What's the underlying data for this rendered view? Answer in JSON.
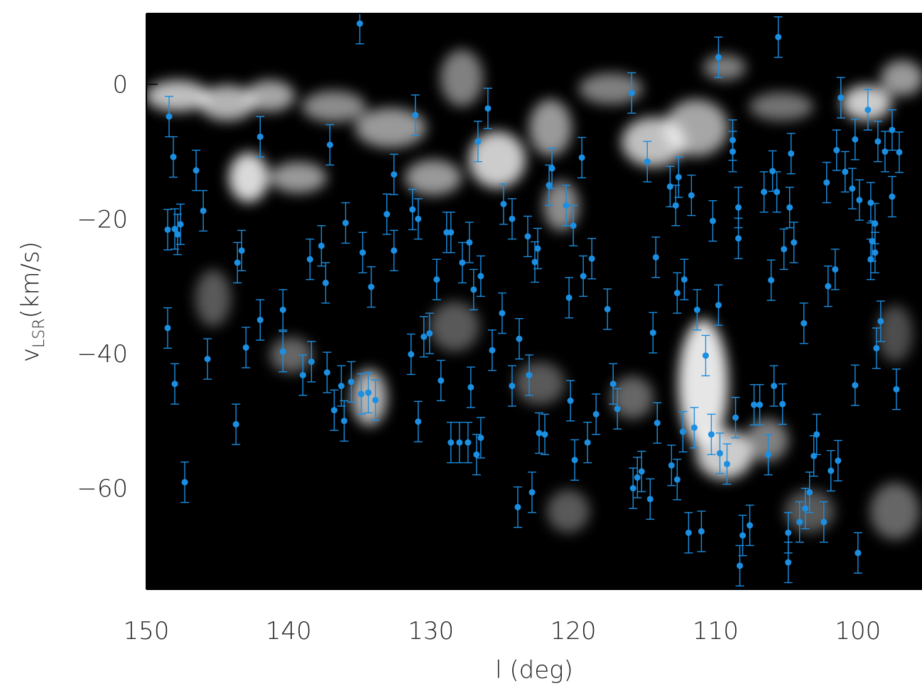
{
  "chart_data": {
    "type": "scatter",
    "title": "",
    "xlabel": "l (deg)",
    "ylabel": {
      "main": "v",
      "sub": "LSR",
      "unit": "(km/s)"
    },
    "xlim": [
      150,
      95.5
    ],
    "ylim": [
      -75,
      10.5
    ],
    "x_ticks": [
      150,
      140,
      130,
      120,
      110,
      100
    ],
    "y_ticks": [
      0,
      -20,
      -40,
      -60
    ],
    "x_tick_labels": [
      "150",
      "140",
      "130",
      "120",
      "110",
      "100"
    ],
    "y_tick_labels": [
      "0",
      "−20",
      "−40",
      "−60"
    ],
    "background": "grayscale position-velocity map (white = strong emission, black = none)",
    "point_color": "#1a8fe3",
    "errorbar_halfwidth_kms": 3,
    "points": [
      [
        135.0,
        9.0
      ],
      [
        105.6,
        7.0
      ],
      [
        109.8,
        4.0
      ],
      [
        115.9,
        -1.3
      ],
      [
        101.2,
        -2.0
      ],
      [
        148.4,
        -4.8
      ],
      [
        131.1,
        -4.6
      ],
      [
        126.0,
        -3.6
      ],
      [
        99.3,
        -3.8
      ],
      [
        148.1,
        -10.8
      ],
      [
        146.5,
        -12.8
      ],
      [
        142.0,
        -7.8
      ],
      [
        137.1,
        -9.0
      ],
      [
        126.7,
        -8.5
      ],
      [
        119.4,
        -10.9
      ],
      [
        114.8,
        -11.5
      ],
      [
        108.8,
        -10.0
      ],
      [
        108.8,
        -8.3
      ],
      [
        104.7,
        -10.3
      ],
      [
        101.5,
        -9.8
      ],
      [
        100.2,
        -8.2
      ],
      [
        98.6,
        -8.5
      ],
      [
        98.1,
        -10.0
      ],
      [
        97.6,
        -6.8
      ],
      [
        97.1,
        -10.1
      ],
      [
        146.0,
        -18.8
      ],
      [
        148.5,
        -21.6
      ],
      [
        148.0,
        -21.5
      ],
      [
        147.6,
        -20.8
      ],
      [
        147.8,
        -22.3
      ],
      [
        136.0,
        -20.6
      ],
      [
        133.1,
        -19.3
      ],
      [
        132.6,
        -13.4
      ],
      [
        131.3,
        -18.6
      ],
      [
        130.9,
        -20.0
      ],
      [
        124.9,
        -17.8
      ],
      [
        124.3,
        -20.0
      ],
      [
        121.5,
        -12.5
      ],
      [
        121.7,
        -15.0
      ],
      [
        120.5,
        -18.0
      ],
      [
        120.0,
        -21.0
      ],
      [
        113.2,
        -15.2
      ],
      [
        112.8,
        -18.0
      ],
      [
        112.6,
        -13.8
      ],
      [
        111.7,
        -16.5
      ],
      [
        110.2,
        -20.3
      ],
      [
        108.4,
        -18.3
      ],
      [
        106.6,
        -16.0
      ],
      [
        106.0,
        -12.9
      ],
      [
        105.7,
        -16.0
      ],
      [
        104.8,
        -18.3
      ],
      [
        102.2,
        -14.6
      ],
      [
        100.9,
        -13.0
      ],
      [
        100.4,
        -15.5
      ],
      [
        99.9,
        -17.2
      ],
      [
        99.1,
        -17.6
      ],
      [
        98.8,
        -20.7
      ],
      [
        97.6,
        -16.7
      ],
      [
        148.5,
        -36.2
      ],
      [
        143.6,
        -26.5
      ],
      [
        143.3,
        -24.7
      ],
      [
        142.0,
        -35.0
      ],
      [
        140.4,
        -33.5
      ],
      [
        138.5,
        -26.0
      ],
      [
        137.7,
        -24.0
      ],
      [
        137.4,
        -29.5
      ],
      [
        134.2,
        -30.1
      ],
      [
        134.8,
        -25.0
      ],
      [
        132.6,
        -24.7
      ],
      [
        130.5,
        -37.5
      ],
      [
        129.6,
        -29.0
      ],
      [
        128.9,
        -22.0
      ],
      [
        128.6,
        -22.0
      ],
      [
        127.8,
        -26.5
      ],
      [
        127.3,
        -23.5
      ],
      [
        127.0,
        -30.5
      ],
      [
        126.5,
        -28.5
      ],
      [
        125.0,
        -34.0
      ],
      [
        123.8,
        -37.8
      ],
      [
        123.2,
        -22.6
      ],
      [
        122.5,
        -24.4
      ],
      [
        122.7,
        -26.4
      ],
      [
        120.3,
        -31.7
      ],
      [
        119.3,
        -28.5
      ],
      [
        118.7,
        -25.9
      ],
      [
        117.6,
        -33.4
      ],
      [
        114.2,
        -25.7
      ],
      [
        114.4,
        -36.9
      ],
      [
        112.7,
        -31.0
      ],
      [
        112.2,
        -29.0
      ],
      [
        111.3,
        -33.5
      ],
      [
        109.8,
        -32.8
      ],
      [
        108.4,
        -22.9
      ],
      [
        106.1,
        -29.1
      ],
      [
        105.2,
        -24.5
      ],
      [
        104.5,
        -23.5
      ],
      [
        103.8,
        -35.5
      ],
      [
        102.1,
        -30.0
      ],
      [
        101.6,
        -27.5
      ],
      [
        99.1,
        -26.0
      ],
      [
        98.8,
        -25.0
      ],
      [
        99.0,
        -23.3
      ],
      [
        98.7,
        -39.2
      ],
      [
        98.4,
        -35.2
      ],
      [
        97.3,
        -45.3
      ],
      [
        148.0,
        -44.5
      ],
      [
        145.7,
        -40.8
      ],
      [
        143.7,
        -50.5
      ],
      [
        143.0,
        -39.1
      ],
      [
        140.4,
        -39.7
      ],
      [
        139.0,
        -43.2
      ],
      [
        138.4,
        -41.2
      ],
      [
        137.3,
        -42.8
      ],
      [
        136.8,
        -48.4
      ],
      [
        136.3,
        -44.8
      ],
      [
        136.1,
        -50.0
      ],
      [
        135.6,
        -44.2
      ],
      [
        134.9,
        -46.0
      ],
      [
        134.4,
        -45.8
      ],
      [
        133.9,
        -46.9
      ],
      [
        131.4,
        -40.1
      ],
      [
        130.9,
        -50.1
      ],
      [
        130.1,
        -37.0
      ],
      [
        129.3,
        -44.0
      ],
      [
        128.6,
        -53.2
      ],
      [
        128.0,
        -53.2
      ],
      [
        127.2,
        -45.0
      ],
      [
        127.4,
        -53.2
      ],
      [
        126.8,
        -55.0
      ],
      [
        126.5,
        -52.5
      ],
      [
        125.7,
        -39.5
      ],
      [
        124.3,
        -44.8
      ],
      [
        123.1,
        -43.2
      ],
      [
        122.4,
        -51.8
      ],
      [
        122.0,
        -52.0
      ],
      [
        120.2,
        -47.0
      ],
      [
        119.9,
        -55.8
      ],
      [
        119.0,
        -53.2
      ],
      [
        118.4,
        -49.0
      ],
      [
        117.2,
        -44.5
      ],
      [
        116.9,
        -48.2
      ],
      [
        115.8,
        -60.0
      ],
      [
        115.5,
        -58.4
      ],
      [
        115.2,
        -57.5
      ],
      [
        114.6,
        -61.6
      ],
      [
        114.1,
        -50.3
      ],
      [
        113.1,
        -56.6
      ],
      [
        112.7,
        -58.7
      ],
      [
        112.3,
        -51.6
      ],
      [
        111.9,
        -66.6
      ],
      [
        111.5,
        -51.0
      ],
      [
        111.0,
        -66.4
      ],
      [
        110.7,
        -40.3
      ],
      [
        110.3,
        -52.0
      ],
      [
        109.7,
        -54.8
      ],
      [
        109.2,
        -56.4
      ],
      [
        108.6,
        -49.5
      ],
      [
        108.3,
        -71.5
      ],
      [
        108.1,
        -67.0
      ],
      [
        107.6,
        -65.5
      ],
      [
        107.3,
        -47.6
      ],
      [
        106.9,
        -47.6
      ],
      [
        106.3,
        -55.0
      ],
      [
        105.9,
        -44.8
      ],
      [
        105.3,
        -47.5
      ],
      [
        104.9,
        -66.6
      ],
      [
        104.9,
        -71.0
      ],
      [
        104.1,
        -65.0
      ],
      [
        103.7,
        -63.0
      ],
      [
        103.4,
        -60.6
      ],
      [
        103.1,
        -55.2
      ],
      [
        102.9,
        -52.0
      ],
      [
        102.4,
        -65.0
      ],
      [
        101.9,
        -57.4
      ],
      [
        101.4,
        -55.9
      ],
      [
        100.0,
        -69.6
      ],
      [
        100.2,
        -44.7
      ],
      [
        123.9,
        -62.8
      ],
      [
        122.9,
        -60.6
      ],
      [
        147.3,
        -59.1
      ]
    ]
  }
}
